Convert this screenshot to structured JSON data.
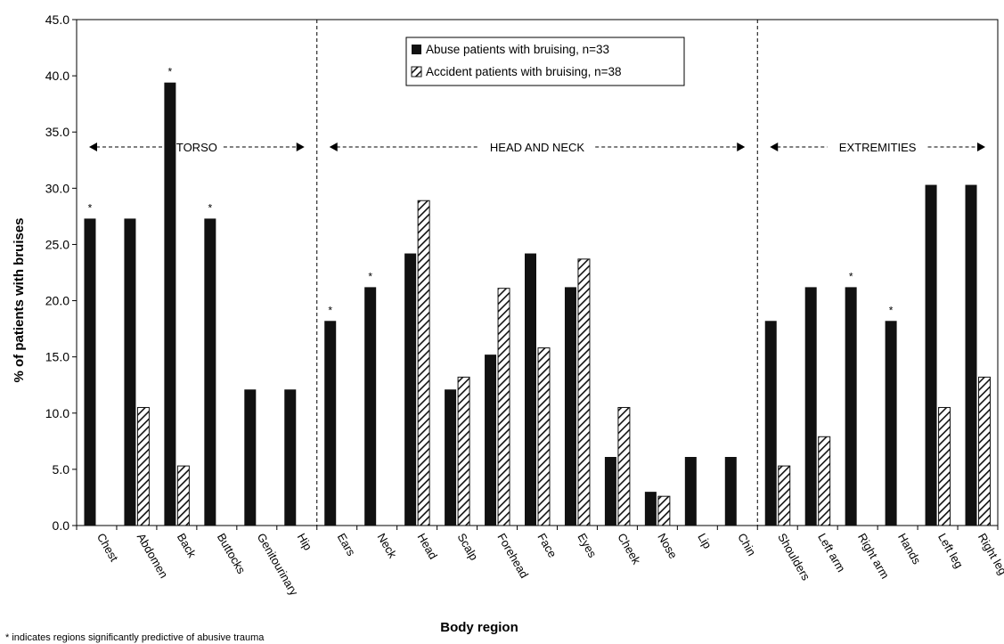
{
  "chart_data": {
    "type": "bar",
    "xlabel": "Body region",
    "ylabel": "% of patients with bruises",
    "ylim": [
      0,
      45
    ],
    "y_ticks": [
      "0.0",
      "5.0",
      "10.0",
      "15.0",
      "20.0",
      "25.0",
      "30.0",
      "35.0",
      "40.0",
      "45.0"
    ],
    "categories": [
      "Chest",
      "Abdomen",
      "Back",
      "Buttocks",
      "Genitourinary",
      "Hip",
      "Ears",
      "Neck",
      "Head",
      "Scalp",
      "Forehead",
      "Face",
      "Eyes",
      "Cheek",
      "Nose",
      "Lip",
      "Chin",
      "Shoulders",
      "Left arm",
      "Right arm",
      "Hands",
      "Left leg",
      "Right leg"
    ],
    "series": [
      {
        "name": "Abuse patients with bruising, n=33",
        "style": "solid",
        "color": "#111111",
        "values": [
          27.3,
          27.3,
          39.4,
          27.3,
          12.1,
          12.1,
          18.2,
          21.2,
          24.2,
          12.1,
          15.2,
          24.2,
          21.2,
          6.1,
          3.0,
          6.1,
          6.1,
          18.2,
          21.2,
          21.2,
          18.2,
          30.3,
          30.3
        ]
      },
      {
        "name": "Accident patients with bruising, n=38",
        "style": "hatched",
        "color": "#111111",
        "values": [
          0,
          10.5,
          5.3,
          0,
          0,
          0,
          0,
          0,
          28.9,
          13.2,
          21.1,
          15.8,
          23.7,
          10.5,
          2.6,
          0,
          0,
          5.3,
          7.9,
          0,
          0,
          10.5,
          13.2
        ]
      }
    ],
    "significant_marker": "*",
    "significant_categories": [
      "Chest",
      "Back",
      "Buttocks",
      "Ears",
      "Neck",
      "Right arm",
      "Hands"
    ],
    "sections": [
      {
        "label": "TORSO",
        "categories": [
          "Chest",
          "Abdomen",
          "Back",
          "Buttocks",
          "Genitourinary",
          "Hip"
        ]
      },
      {
        "label": "HEAD AND NECK",
        "categories": [
          "Ears",
          "Neck",
          "Head",
          "Scalp",
          "Forehead",
          "Face",
          "Eyes",
          "Cheek",
          "Nose",
          "Lip",
          "Chin"
        ]
      },
      {
        "label": "EXTREMITIES",
        "categories": [
          "Shoulders",
          "Left arm",
          "Right arm",
          "Hands",
          "Left leg",
          "Right leg"
        ]
      }
    ],
    "legend_placement": "top-center",
    "grid": false,
    "footnote": "* indicates regions significantly predictive of abusive trauma"
  }
}
